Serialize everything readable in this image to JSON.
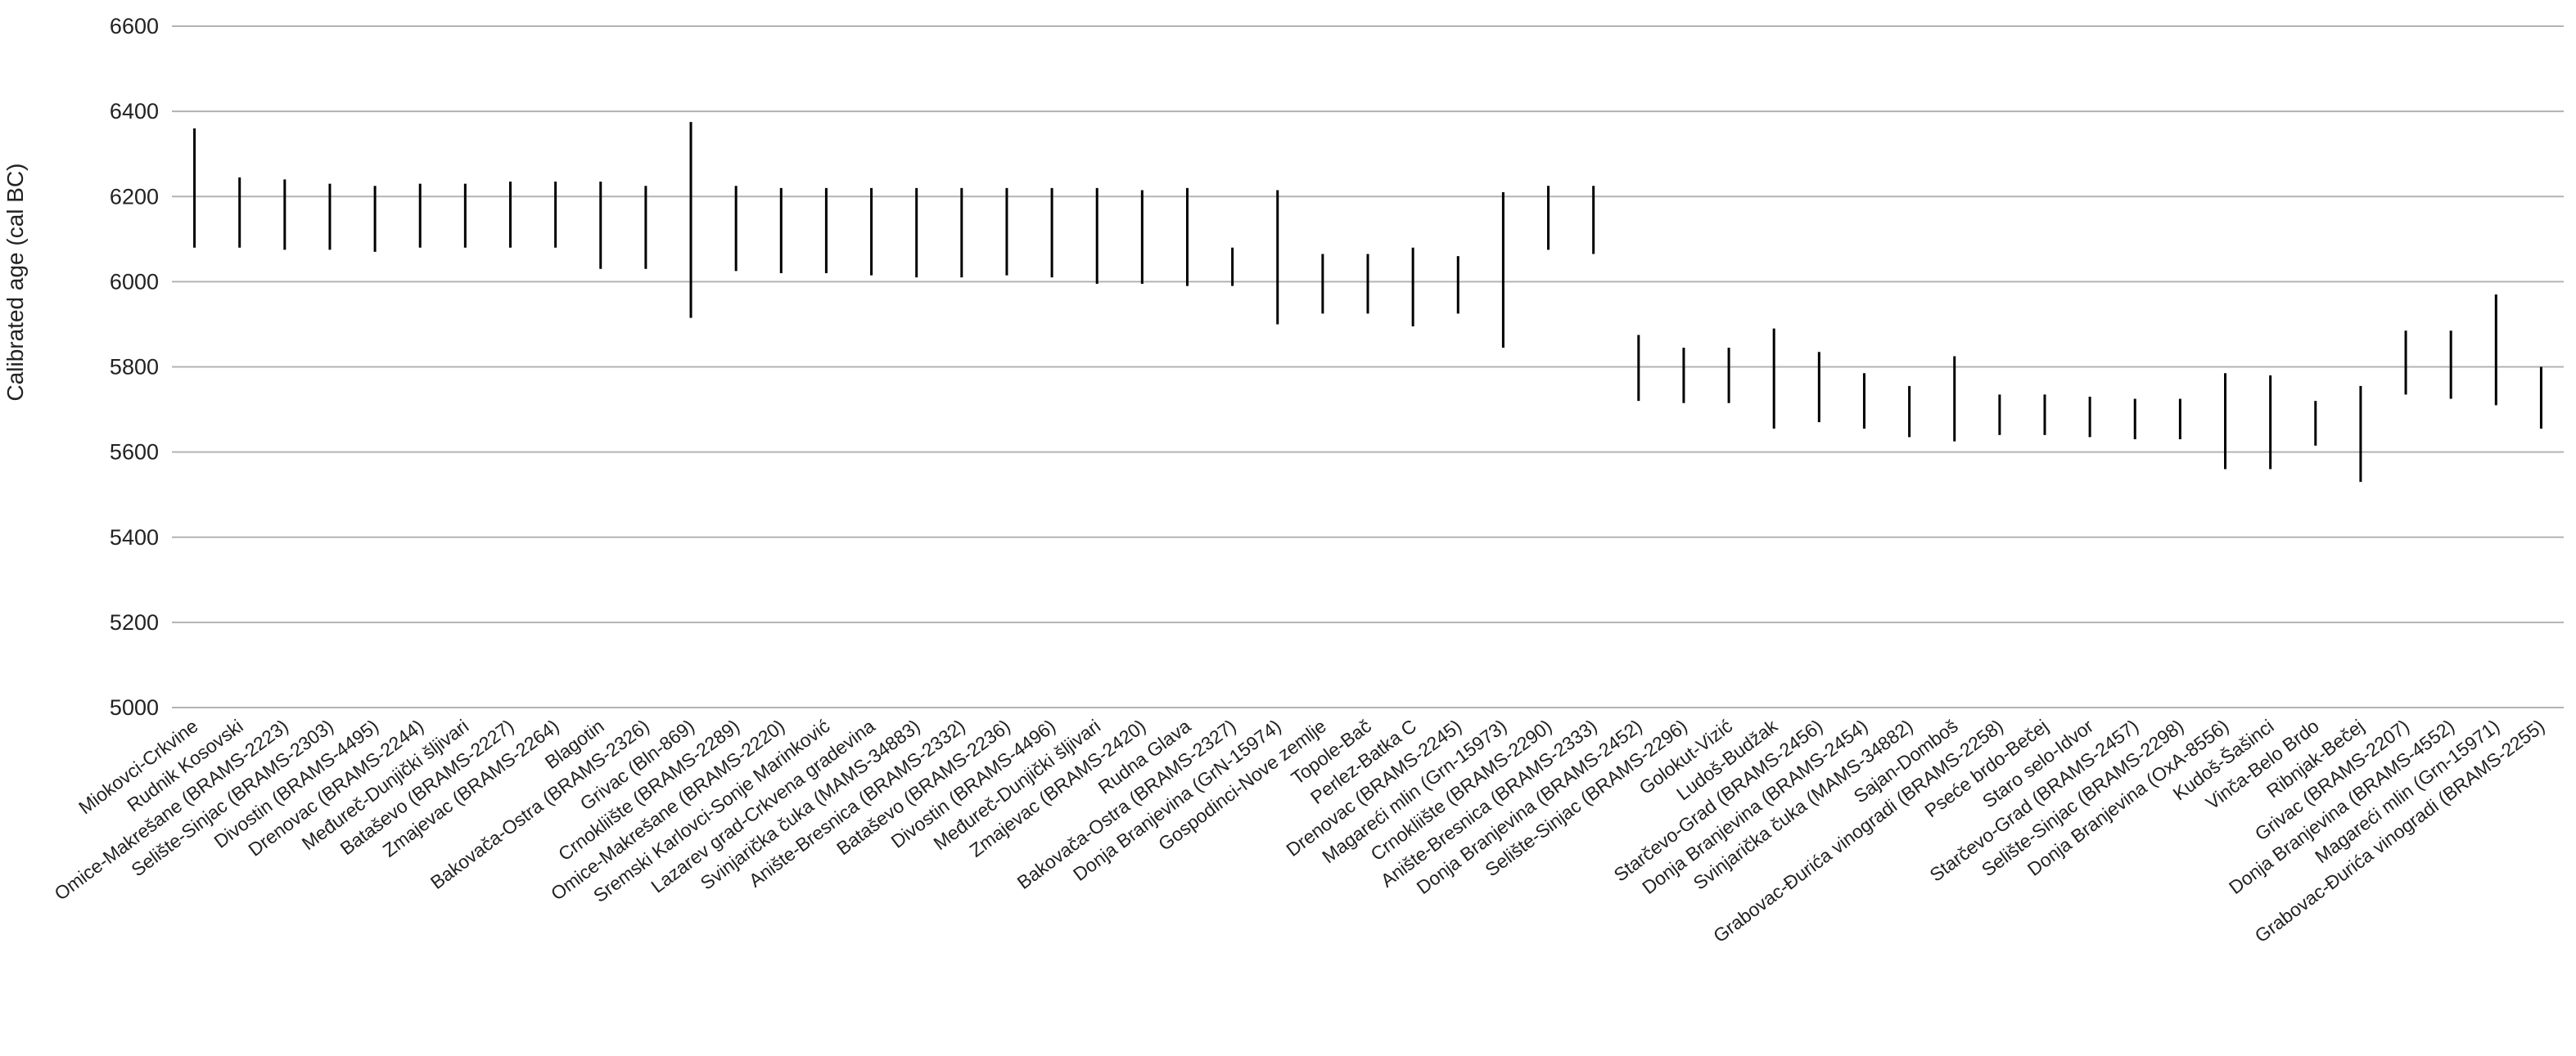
{
  "chart_data": {
    "type": "range",
    "ylabel": "Calibrated age (cal BC)",
    "xlabel": "",
    "title": "",
    "ylim": [
      5000,
      6600
    ],
    "yticks": [
      5000,
      5200,
      5400,
      5600,
      5800,
      6000,
      6200,
      6400,
      6600
    ],
    "grid": true,
    "categories": [
      "Miokovci-Crkvine",
      "Rudnik Kosovski",
      "Omice-Makrešane (BRAMS-2223)",
      "Selište-Sinjac (BRAMS-2303)",
      "Divostin (BRAMS-4495)",
      "Drenovac (BRAMS-2244)",
      "Međureč-Dunjički šljivari",
      "Bataševo (BRAMS-2227)",
      "Zmajevac (BRAMS-2264)",
      "Blagotin",
      "Bakovača-Ostra (BRAMS-2326)",
      "Grivac (Bln-869)",
      "Crnokliište (BRAMS-2289)",
      "Omice-Makrešane (BRAMS-2220)",
      "Sremski Karlovci-Sonje Marinković",
      "Lazarev grad-Crkvena gradevina",
      "Svinjarička čuka (MAMS-34883)",
      "Anište-Bresnica (BRAMS-2332)",
      "Bataševo (BRAMS-2236)",
      "Divostin (BRAMS-4496)",
      "Međureč-Dunjički šljivari",
      "Zmajevac (BRAMS-2420)",
      "Rudna Glava",
      "Bakovača-Ostra (BRAMS-2327)",
      "Donja Branjevina (GrN-15974)",
      "Gospodinci-Nove zemlje",
      "Topole-Bač",
      "Perlez-Batka C",
      "Drenovac (BRAMS-2245)",
      "Magareći mlin (Grn-15973)",
      "Crnokliište (BRAMS-2290)",
      "Anište-Bresnica (BRAMS-2333)",
      "Donja Branjevina (BRAMS-2452)",
      "Selište-Sinjac (BRAMS-2296)",
      "Golokut-Vizić",
      "Ludoš-Budžak",
      "Starčevo-Grad (BRAMS-2456)",
      "Donja Branjevina (BRAMS-2454)",
      "Svinjarička čuka (MAMS-34882)",
      "Sajan-Domboš",
      "Grabovac-Đurića vinogradi (BRAMS-2258)",
      "Pseće brdo-Bečej",
      "Staro selo-Idvor",
      "Starčevo-Grad (BRAMS-2457)",
      "Selište-Sinjac (BRAMS-2298)",
      "Donja Branjevina (OxA-8556)",
      "Kudoš-Šašinci",
      "Vinča-Belo Brdo",
      "Ribnjak-Bečej",
      "Grivac (BRAMS-2207)",
      "Donja Branjevina (BRAMS-4552)",
      "Magareći mlin (Grn-15971)",
      "Grabovac-Đurića vinogradi (BRAMS-2255)"
    ],
    "ranges": [
      [
        6080,
        6360
      ],
      [
        6080,
        6245
      ],
      [
        6075,
        6240
      ],
      [
        6075,
        6230
      ],
      [
        6070,
        6225
      ],
      [
        6080,
        6230
      ],
      [
        6080,
        6230
      ],
      [
        6080,
        6235
      ],
      [
        6080,
        6235
      ],
      [
        6030,
        6235
      ],
      [
        6030,
        6225
      ],
      [
        5915,
        6375
      ],
      [
        6025,
        6225
      ],
      [
        6020,
        6220
      ],
      [
        6020,
        6220
      ],
      [
        6015,
        6220
      ],
      [
        6010,
        6220
      ],
      [
        6010,
        6220
      ],
      [
        6015,
        6220
      ],
      [
        6010,
        6220
      ],
      [
        5995,
        6220
      ],
      [
        5995,
        6215
      ],
      [
        5990,
        6220
      ],
      [
        5990,
        6080
      ],
      [
        5900,
        6215
      ],
      [
        5925,
        6065
      ],
      [
        5925,
        6065
      ],
      [
        5895,
        6080
      ],
      [
        5925,
        6060
      ],
      [
        5845,
        6210
      ],
      [
        6075,
        6225
      ],
      [
        6065,
        6225
      ],
      [
        5720,
        5875
      ],
      [
        5715,
        5845
      ],
      [
        5715,
        5845
      ],
      [
        5655,
        5890
      ],
      [
        5670,
        5835
      ],
      [
        5655,
        5785
      ],
      [
        5635,
        5755
      ],
      [
        5625,
        5825
      ],
      [
        5640,
        5735
      ],
      [
        5640,
        5735
      ],
      [
        5635,
        5730
      ],
      [
        5630,
        5725
      ],
      [
        5630,
        5725
      ],
      [
        5560,
        5785
      ],
      [
        5560,
        5780
      ],
      [
        5615,
        5720
      ],
      [
        5530,
        5755
      ],
      [
        5735,
        5885
      ],
      [
        5725,
        5885
      ],
      [
        5710,
        5970
      ],
      [
        5655,
        5800
      ]
    ]
  }
}
